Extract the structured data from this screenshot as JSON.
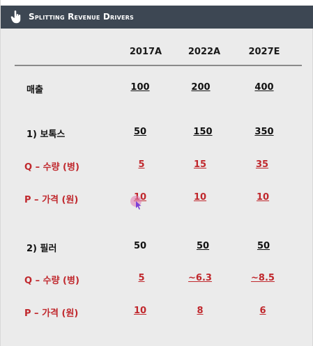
{
  "header": {
    "title": "Splitting Revenue Drivers",
    "icon": "pointer-hand-icon"
  },
  "columns": [
    "2017A",
    "2022A",
    "2027E"
  ],
  "rows": [
    {
      "label": "매출",
      "values": [
        "100",
        "200",
        "400"
      ],
      "color": "#111111"
    },
    {
      "label": "1) 보톡스",
      "values": [
        "50",
        "150",
        "350"
      ],
      "color": "#111111"
    },
    {
      "label": "Q – 수량 (병)",
      "values": [
        "5",
        "15",
        "35"
      ],
      "color": "#c0282d"
    },
    {
      "label": "P – 가격 (원)",
      "values": [
        "10",
        "10",
        "10"
      ],
      "color": "#c0282d"
    },
    {
      "label": "2) 필러",
      "values": [
        "50",
        "50",
        "50"
      ],
      "color": "#111111"
    },
    {
      "label": "Q – 수량 (병)",
      "values": [
        "5",
        "~6.3",
        "~8.5"
      ],
      "color": "#c0282d"
    },
    {
      "label": "P – 가격 (원)",
      "values": [
        "10",
        "8",
        "6"
      ],
      "color": "#c0282d"
    }
  ],
  "colors": {
    "header_bg": "#3d4753",
    "accent_red": "#c0282d",
    "cursor": "#7b3fd6"
  }
}
